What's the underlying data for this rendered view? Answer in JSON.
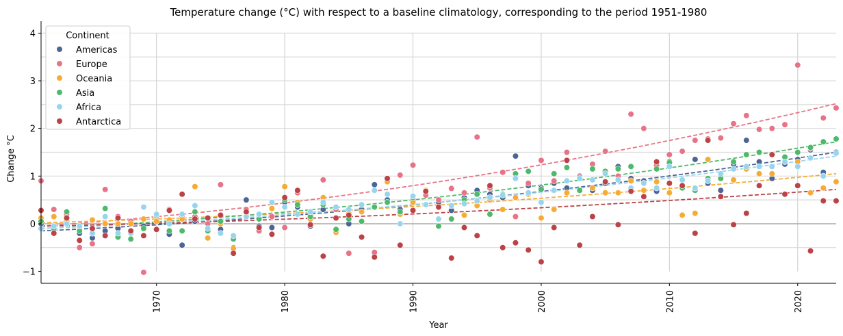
{
  "chart_data": {
    "type": "scatter",
    "title": "Temperature change (°C) with respect to a baseline climatology, corresponding to the period 1951-1980",
    "xlabel": "Year",
    "ylabel": "Change °C",
    "xlim": [
      1961,
      2023
    ],
    "ylim": [
      -1.25,
      4.25
    ],
    "xticks": [
      1970,
      1980,
      1990,
      2000,
      2010,
      2020
    ],
    "yticks": [
      -1,
      0,
      1,
      2,
      3,
      4
    ],
    "grid": "vertical at x ticks, horizontal every 0.5",
    "legend": {
      "title": "Continent",
      "placement": "top-left"
    },
    "x": [
      1961,
      1962,
      1963,
      1964,
      1965,
      1966,
      1967,
      1968,
      1969,
      1970,
      1971,
      1972,
      1973,
      1974,
      1975,
      1976,
      1977,
      1978,
      1979,
      1980,
      1981,
      1982,
      1983,
      1984,
      1985,
      1986,
      1987,
      1988,
      1989,
      1990,
      1991,
      1992,
      1993,
      1994,
      1995,
      1996,
      1997,
      1998,
      1999,
      2000,
      2001,
      2002,
      2003,
      2004,
      2005,
      2006,
      2007,
      2008,
      2009,
      2010,
      2011,
      2012,
      2013,
      2014,
      2015,
      2016,
      2017,
      2018,
      2019,
      2020,
      2021,
      2022,
      2023
    ],
    "series": [
      {
        "name": "Americas",
        "color": "#4c6496",
        "values": [
          0.0,
          -0.12,
          0.05,
          -0.2,
          -0.3,
          -0.15,
          -0.1,
          -0.18,
          -0.05,
          0.2,
          -0.22,
          -0.45,
          0.05,
          -0.1,
          -0.12,
          -0.28,
          0.5,
          -0.05,
          -0.08,
          0.45,
          0.35,
          -0.05,
          0.3,
          0.3,
          0.0,
          0.3,
          0.82,
          0.5,
          0.3,
          0.5,
          0.4,
          0.45,
          0.28,
          0.55,
          0.7,
          0.62,
          0.55,
          1.42,
          0.8,
          0.75,
          0.85,
          0.75,
          1.0,
          0.7,
          0.85,
          1.2,
          0.95,
          0.9,
          0.68,
          1.3,
          0.8,
          1.35,
          0.85,
          0.7,
          1.25,
          1.75,
          1.3,
          0.95,
          1.25,
          1.35,
          1.55,
          1.08,
          1.5
        ],
        "trend": [
          -0.15,
          1.5
        ]
      },
      {
        "name": "Europe",
        "color": "#e87386",
        "values": [
          0.9,
          0.3,
          0.2,
          -0.5,
          -0.42,
          0.72,
          0.15,
          0.05,
          -1.02,
          0.15,
          0.3,
          0.15,
          0.15,
          0.0,
          0.82,
          -0.5,
          0.3,
          -0.15,
          0.15,
          -0.08,
          0.65,
          0.25,
          0.92,
          0.3,
          -0.62,
          0.25,
          -0.6,
          0.9,
          1.02,
          1.23,
          0.6,
          0.5,
          0.74,
          0.65,
          1.82,
          0.75,
          1.08,
          0.15,
          0.85,
          1.33,
          0.9,
          1.5,
          0.98,
          1.25,
          1.52,
          1.0,
          2.3,
          2.0,
          1.22,
          1.45,
          1.52,
          1.75,
          1.78,
          1.8,
          2.1,
          2.27,
          1.98,
          2.0,
          2.08,
          3.33,
          1.58,
          2.22,
          2.43
        ],
        "trend": [
          -0.05,
          2.52
        ]
      },
      {
        "name": "Oceania",
        "color": "#f6ac34",
        "values": [
          0.12,
          0.15,
          0.05,
          -0.1,
          0.08,
          0.0,
          0.0,
          0.0,
          0.1,
          0.05,
          0.08,
          0.1,
          0.78,
          -0.3,
          0.0,
          -0.52,
          0.2,
          0.1,
          0.32,
          0.78,
          0.45,
          0.1,
          0.55,
          -0.18,
          0.22,
          0.25,
          0.35,
          0.88,
          0.2,
          0.45,
          0.7,
          0.35,
          0.1,
          0.18,
          0.38,
          0.5,
          0.3,
          0.55,
          0.62,
          0.12,
          0.3,
          0.65,
          0.7,
          0.75,
          0.65,
          0.65,
          0.9,
          0.7,
          0.88,
          0.65,
          0.18,
          0.22,
          1.35,
          0.95,
          0.92,
          1.15,
          1.05,
          1.05,
          1.4,
          1.3,
          0.65,
          0.75,
          0.88
        ],
        "trend": [
          0.02,
          1.05
        ]
      },
      {
        "name": "Asia",
        "color": "#4fb96b",
        "values": [
          0.05,
          -0.1,
          0.25,
          -0.15,
          -0.2,
          0.32,
          -0.28,
          -0.32,
          -0.1,
          0.18,
          -0.15,
          -0.15,
          0.25,
          -0.15,
          0.05,
          -0.32,
          0.15,
          0.1,
          0.45,
          0.5,
          0.4,
          0.15,
          0.4,
          -0.12,
          0.1,
          0.05,
          0.35,
          0.45,
          0.25,
          0.55,
          0.4,
          -0.05,
          0.1,
          0.5,
          0.62,
          0.2,
          0.62,
          1.05,
          1.1,
          0.72,
          1.05,
          1.18,
          0.7,
          1.15,
          1.1,
          1.15,
          1.2,
          0.85,
          1.15,
          1.28,
          0.75,
          0.7,
          0.95,
          0.95,
          1.3,
          1.45,
          1.5,
          1.45,
          1.4,
          1.5,
          1.6,
          1.72,
          1.78
        ],
        "trend": [
          -0.1,
          1.72
        ]
      },
      {
        "name": "Africa",
        "color": "#97d5ee",
        "values": [
          -0.1,
          -0.05,
          0.0,
          -0.05,
          -0.2,
          0.15,
          -0.2,
          -0.2,
          0.35,
          0.2,
          0.0,
          0.2,
          0.38,
          -0.1,
          -0.2,
          -0.25,
          0.15,
          0.2,
          0.45,
          0.35,
          0.2,
          0.25,
          0.45,
          0.35,
          0.3,
          0.4,
          0.7,
          0.62,
          0.0,
          0.58,
          0.4,
          0.1,
          0.38,
          0.42,
          0.48,
          0.55,
          0.6,
          0.95,
          0.65,
          0.45,
          0.7,
          0.9,
          0.95,
          0.92,
          1.05,
          0.92,
          0.75,
          0.85,
          0.75,
          1.2,
          0.92,
          0.75,
          0.9,
          1.05,
          1.15,
          1.2,
          1.2,
          1.2,
          1.3,
          1.2,
          1.38,
          1.0,
          1.48
        ],
        "trend": [
          -0.1,
          1.42
        ]
      },
      {
        "name": "Antarctica",
        "color": "#bb4246",
        "values": [
          0.28,
          -0.2,
          0.12,
          -0.35,
          -0.1,
          -0.25,
          0.12,
          -0.15,
          -0.25,
          -0.12,
          0.28,
          0.62,
          0.1,
          0.12,
          0.18,
          -0.62,
          0.25,
          -0.08,
          -0.22,
          0.55,
          0.7,
          -0.02,
          -0.68,
          0.12,
          0.18,
          -0.28,
          -0.7,
          0.95,
          -0.45,
          0.28,
          0.68,
          0.35,
          -0.72,
          -0.08,
          -0.25,
          0.8,
          -0.5,
          -0.4,
          -0.55,
          -0.8,
          -0.08,
          1.33,
          -0.45,
          0.15,
          0.88,
          -0.02,
          0.68,
          0.57,
          1.3,
          0.85,
          0.8,
          -0.2,
          1.75,
          0.57,
          -0.02,
          0.22,
          0.8,
          1.45,
          0.62,
          0.8,
          -0.57,
          0.48,
          0.48
        ],
        "trend": [
          -0.05,
          0.72
        ]
      }
    ]
  }
}
